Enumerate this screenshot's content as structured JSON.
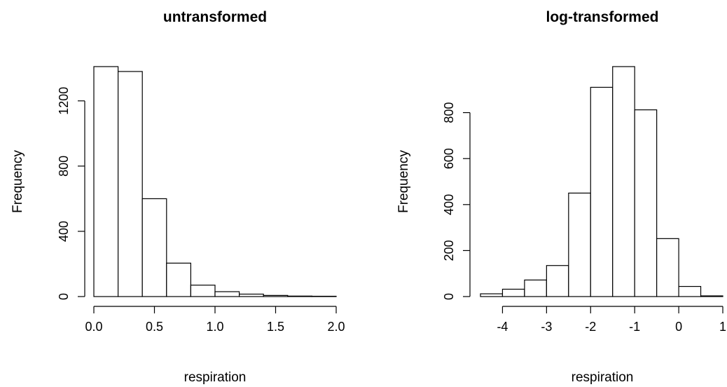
{
  "chart_data": [
    {
      "type": "bar",
      "title": "untransformed",
      "xlabel": "respiration",
      "ylabel": "Frequency",
      "bin_edges": [
        0.0,
        0.2,
        0.4,
        0.6,
        0.8,
        1.0,
        1.2,
        1.4,
        1.6,
        1.8,
        2.0
      ],
      "values": [
        1410,
        1380,
        600,
        205,
        70,
        30,
        15,
        7,
        3,
        2
      ],
      "xlim": [
        0,
        2
      ],
      "ylim": [
        0,
        1410
      ],
      "xticks": [
        0.0,
        0.5,
        1.0,
        1.5,
        2.0
      ],
      "xtick_labels": [
        "0.0",
        "0.5",
        "1.0",
        "1.5",
        "2.0"
      ],
      "yticks": [
        0,
        400,
        800,
        1200
      ],
      "ytick_labels": [
        "0",
        "400",
        "800",
        "1200"
      ],
      "grid": false
    },
    {
      "type": "bar",
      "title": "log-transformed",
      "xlabel": "respiration",
      "ylabel": "Frequency",
      "bin_edges": [
        -4.5,
        -4.0,
        -3.5,
        -3.0,
        -2.5,
        -2.0,
        -1.5,
        -1.0,
        -0.5,
        0.0,
        0.5,
        1.0
      ],
      "values": [
        12,
        32,
        72,
        135,
        450,
        910,
        1000,
        812,
        252,
        44,
        3
      ],
      "xlim": [
        -4.5,
        1
      ],
      "ylim": [
        0,
        1000
      ],
      "xticks": [
        -4,
        -3,
        -2,
        -1,
        0,
        1
      ],
      "xtick_labels": [
        "-4",
        "-3",
        "-2",
        "-1",
        "0",
        "1"
      ],
      "yticks": [
        0,
        200,
        400,
        600,
        800
      ],
      "ytick_labels": [
        "0",
        "200",
        "400",
        "600",
        "800"
      ],
      "grid": false
    }
  ]
}
